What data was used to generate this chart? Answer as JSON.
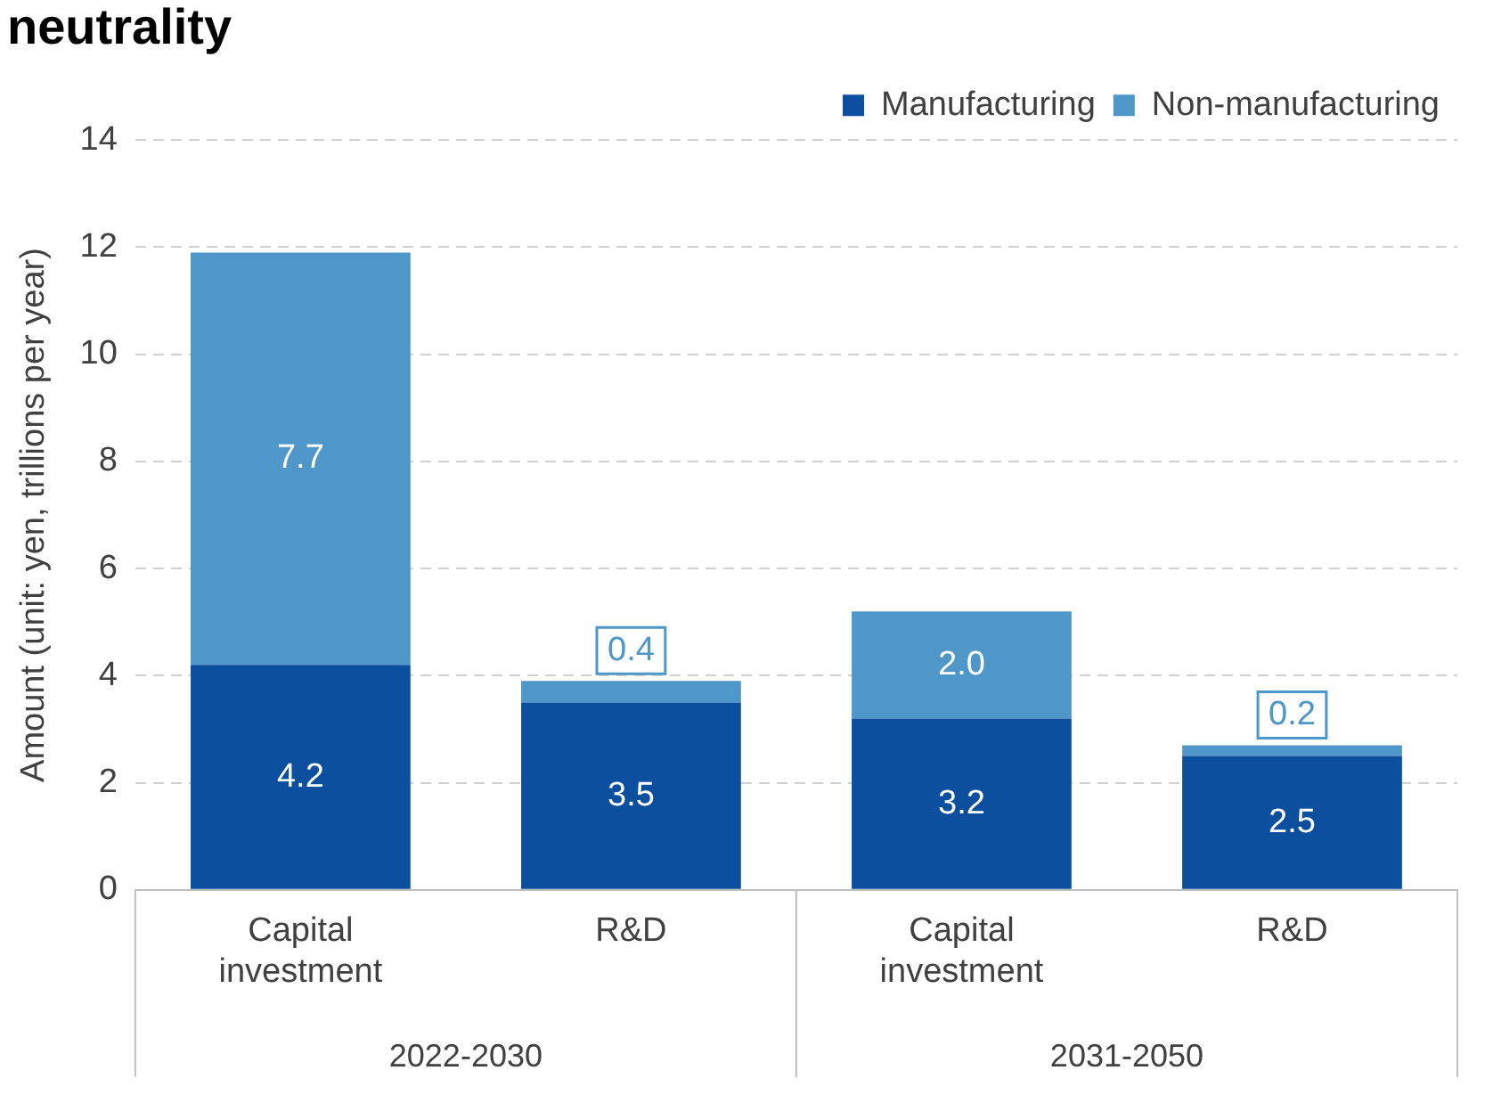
{
  "chart_data": {
    "type": "bar",
    "title": "neutrality",
    "ylabel": "Amount (unit: yen, trillions per year)",
    "categories": [
      "Capital investment",
      "R&D",
      "Capital investment",
      "R&D"
    ],
    "series": [
      {
        "name": "Manufacturing",
        "color": "#0b4f9e",
        "values": [
          4.2,
          3.5,
          3.2,
          2.5
        ],
        "value_labels": [
          "4.2",
          "3.5",
          "3.2",
          "2.5"
        ]
      },
      {
        "name": "Non-manufacturing",
        "color": "#4f97c8",
        "values": [
          7.7,
          0.4,
          2.0,
          0.2
        ],
        "value_labels": [
          "7.7",
          "0.4",
          "2.0",
          "0.2"
        ]
      }
    ],
    "stacked": true,
    "ylim": [
      0,
      14
    ],
    "yticks": [
      0,
      2,
      4,
      6,
      8,
      10,
      12,
      14
    ],
    "grid": "y",
    "legend": "top right",
    "annotations": [
      "2022-2030",
      "2031-2050"
    ]
  }
}
